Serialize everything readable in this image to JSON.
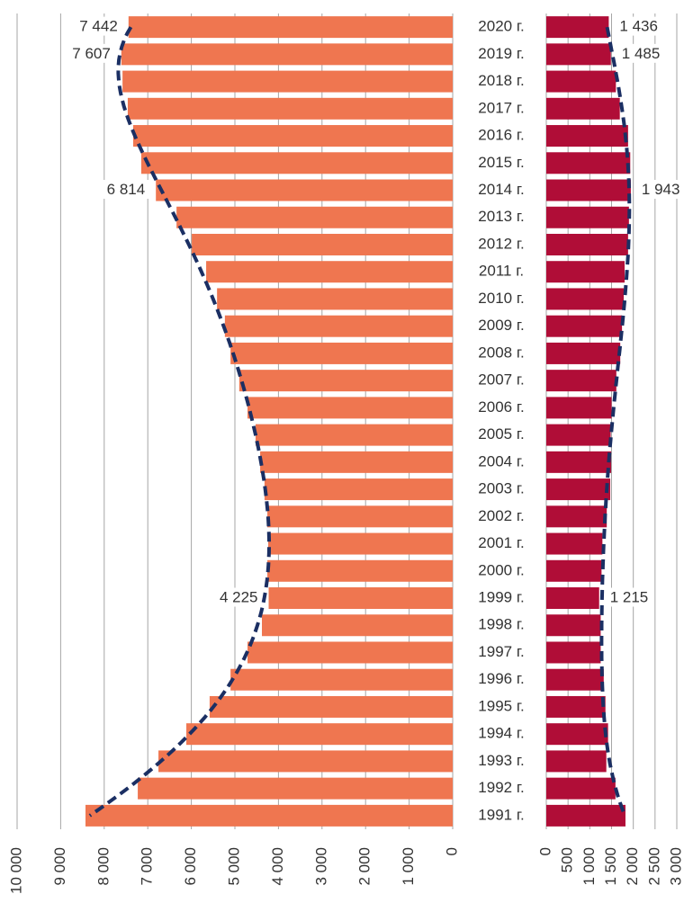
{
  "chart_data": [
    {
      "type": "bar",
      "orientation": "horizontal",
      "x_reversed": true,
      "color": "#ef7650",
      "trendline": true,
      "trendline_color": "#1b2f63",
      "grid": true,
      "categories": [
        "2020 г.",
        "2019 г.",
        "2018 г.",
        "2017 г.",
        "2016 г.",
        "2015 г.",
        "2014 г.",
        "2013 г.",
        "2012 г.",
        "2011 г.",
        "2010 г.",
        "2009 г.",
        "2008 г.",
        "2007 г.",
        "2006 г.",
        "2005 г.",
        "2004 г.",
        "2003 г.",
        "2002 г.",
        "2001 г.",
        "2000 г.",
        "1999 г.",
        "1998 г.",
        "1997 г.",
        "1996 г.",
        "1995 г.",
        "1994 г.",
        "1993 г.",
        "1992 г.",
        "1991 г."
      ],
      "values": [
        7442,
        7607,
        7580,
        7460,
        7335,
        7150,
        6814,
        6340,
        5990,
        5660,
        5410,
        5230,
        5100,
        4900,
        4710,
        4525,
        4420,
        4320,
        4255,
        4235,
        4255,
        4225,
        4380,
        4710,
        5100,
        5580,
        6115,
        6755,
        7230,
        8430
      ],
      "value_labels": [
        "7 442",
        "7 607",
        null,
        null,
        null,
        null,
        "6 814",
        null,
        null,
        null,
        null,
        null,
        null,
        null,
        null,
        null,
        null,
        null,
        null,
        null,
        null,
        "4 225",
        null,
        null,
        null,
        null,
        null,
        null,
        null,
        null
      ],
      "xlim": [
        0,
        10000
      ],
      "xticks": [
        0,
        {
          "value": 1000,
          "label": "1 000"
        },
        {
          "value": 2000,
          "label": "2 000"
        },
        {
          "value": 3000,
          "label": "3 000"
        },
        {
          "value": 4000,
          "label": "4 000"
        },
        {
          "value": 5000,
          "label": "5 000"
        },
        {
          "value": 6000,
          "label": "6 000"
        },
        {
          "value": 7000,
          "label": "7 000"
        },
        {
          "value": 8000,
          "label": "8 000"
        },
        {
          "value": 9000,
          "label": "9 000"
        },
        {
          "value": 10000,
          "label": "10 000"
        }
      ]
    },
    {
      "type": "bar",
      "orientation": "horizontal",
      "x_reversed": false,
      "color": "#b00d37",
      "trendline": true,
      "trendline_color": "#1b2f63",
      "grid": true,
      "values": [
        1436,
        1485,
        1600,
        1690,
        1880,
        1930,
        1943,
        1900,
        1880,
        1800,
        1780,
        1740,
        1700,
        1610,
        1500,
        1480,
        1490,
        1470,
        1390,
        1290,
        1270,
        1215,
        1250,
        1250,
        1320,
        1360,
        1420,
        1380,
        1590,
        1820
      ],
      "value_labels": [
        "1 436",
        "1 485",
        null,
        null,
        null,
        null,
        "1 943",
        null,
        null,
        null,
        null,
        null,
        null,
        null,
        null,
        null,
        null,
        null,
        null,
        null,
        null,
        "1 215",
        null,
        null,
        null,
        null,
        null,
        null,
        null,
        null
      ],
      "xlim": [
        0,
        3000
      ],
      "xticks": [
        0,
        500,
        {
          "value": 1000,
          "label": "1 000"
        },
        {
          "value": 1500,
          "label": "1 500"
        },
        {
          "value": 2000,
          "label": "2 000"
        },
        {
          "value": 2500,
          "label": "2 500"
        },
        {
          "value": 3000,
          "label": "3 000"
        }
      ]
    }
  ]
}
